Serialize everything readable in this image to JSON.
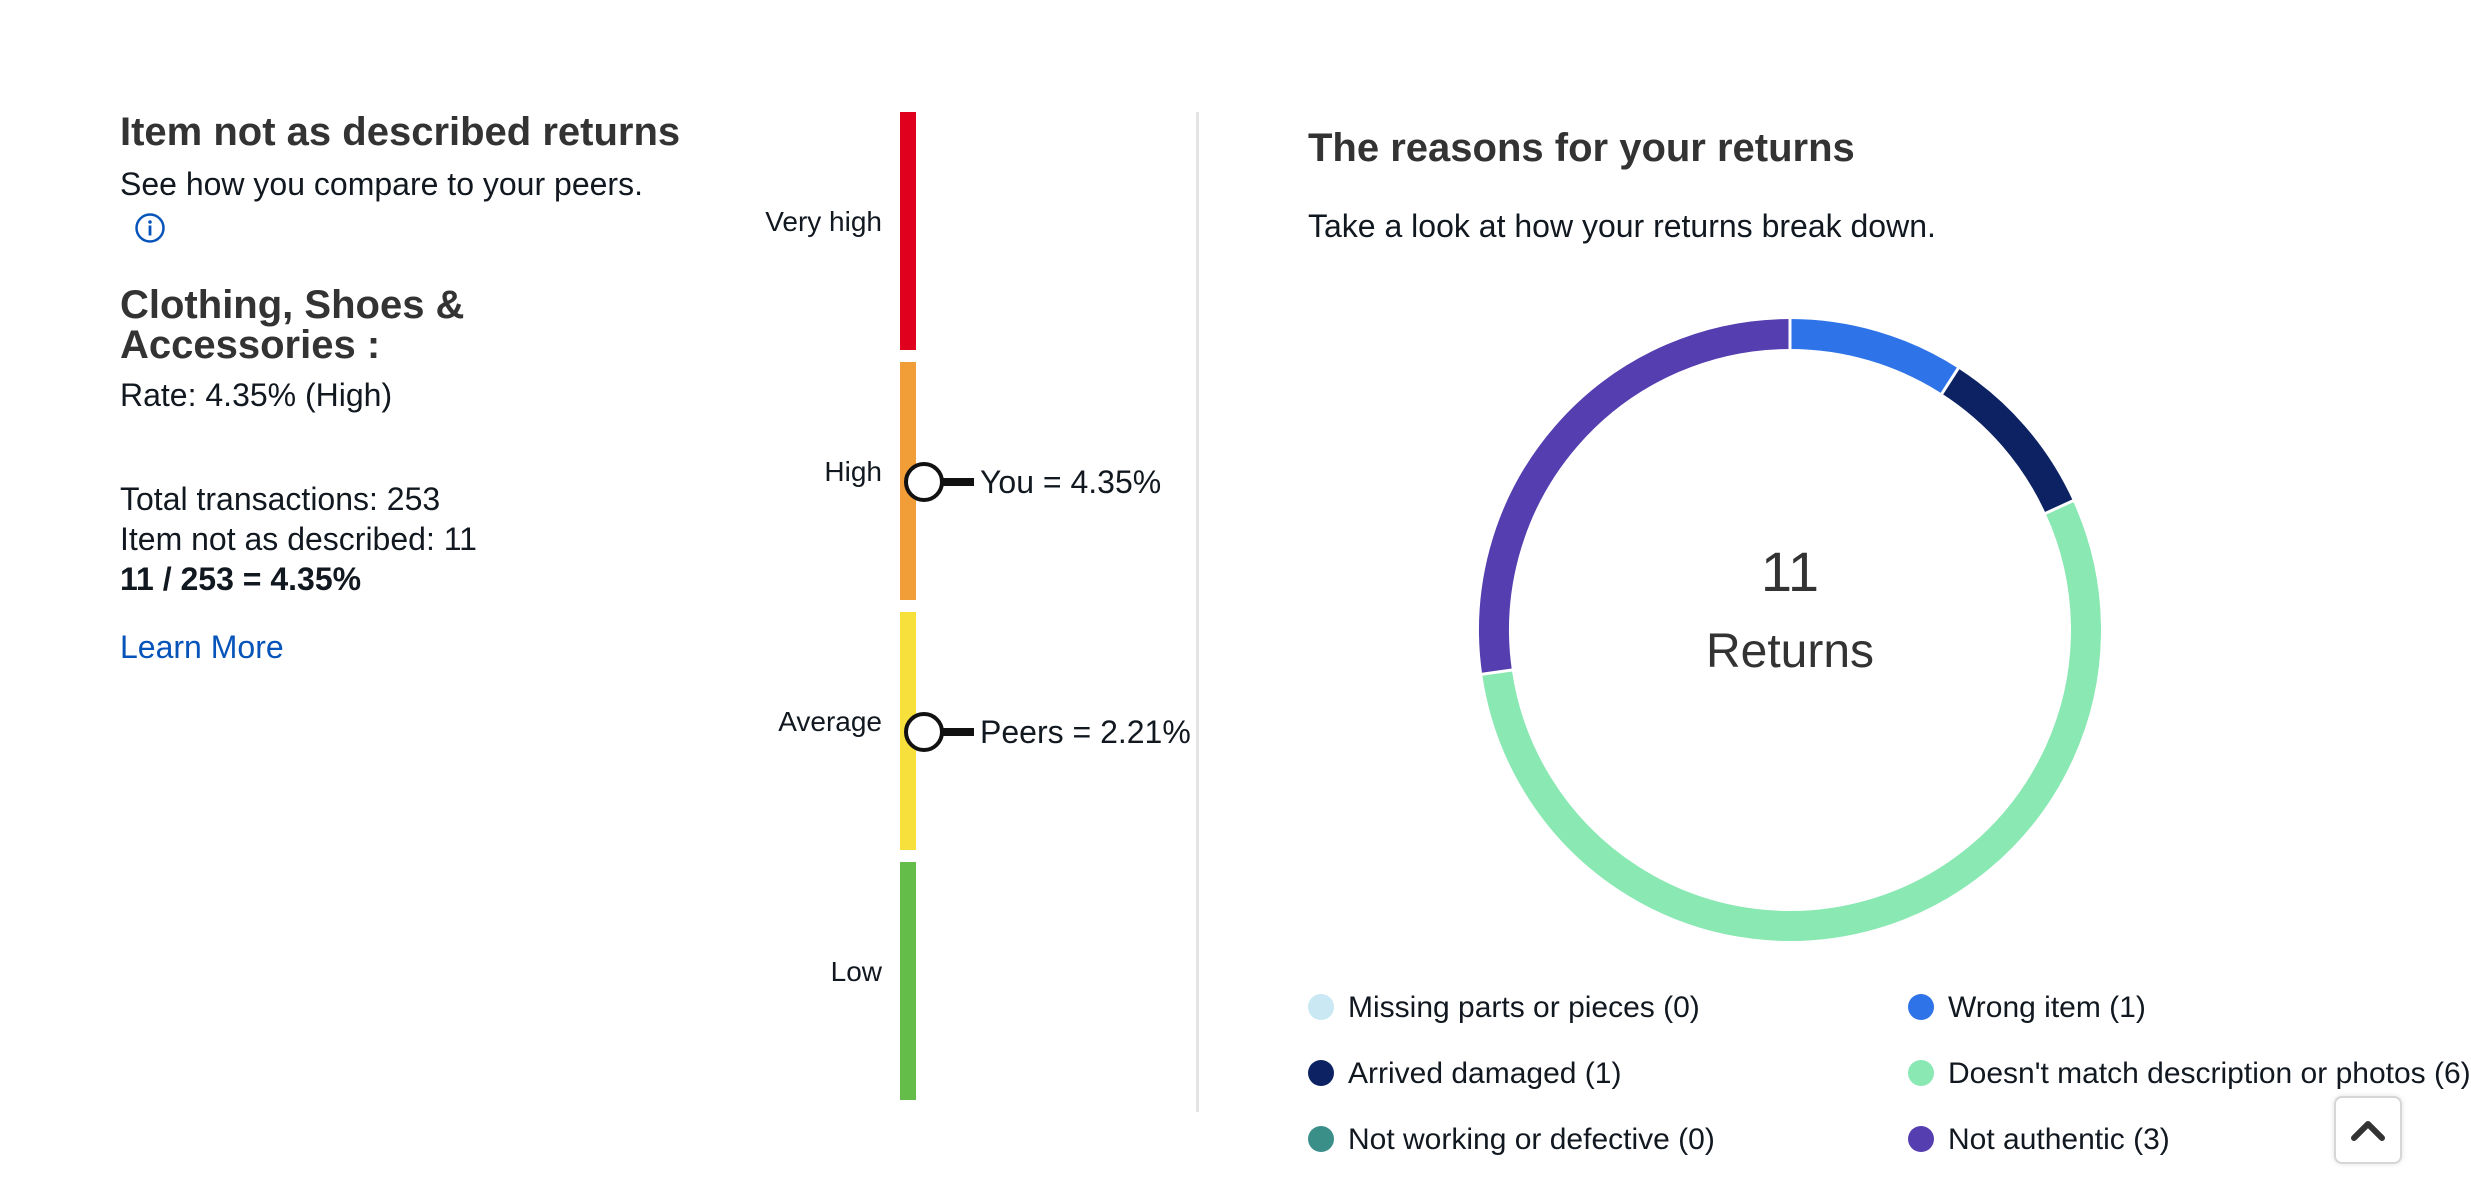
{
  "summary": {
    "title": "Item not as described returns",
    "subtitle": "See how you compare to your peers.",
    "category_title": "Clothing, Shoes & Accessories :",
    "rate_text": "Rate: 4.35% (High)",
    "total_transactions": "Total transactions: 253",
    "item_not_as_described": "Item not as described: 11",
    "formula": "11 / 253 = 4.35%",
    "learn_more": "Learn More",
    "info_icon": "info-circle-icon"
  },
  "scale": {
    "segments": [
      {
        "label": "Very high",
        "color": "#e0001e"
      },
      {
        "label": "High",
        "color": "#f19d38"
      },
      {
        "label": "Average",
        "color": "#f7e03b"
      },
      {
        "label": "Low",
        "color": "#63bd48"
      }
    ],
    "markers": [
      {
        "label": "You = 4.35%",
        "level": "High"
      },
      {
        "label": "Peers = 2.21%",
        "level": "Average"
      }
    ]
  },
  "breakdown": {
    "title": "The reasons for your returns",
    "subtitle": "Take a look at how your returns break down.",
    "total_count": "11",
    "total_label": "Returns",
    "reasons": [
      {
        "label": "Missing parts or pieces (0)",
        "count": 0,
        "color": "#c9e8f4"
      },
      {
        "label": "Wrong item (1)",
        "count": 1,
        "color": "#2e73e8"
      },
      {
        "label": "Arrived damaged (1)",
        "count": 1,
        "color": "#0c2263"
      },
      {
        "label": "Doesn't match description or photos (6)",
        "count": 6,
        "color": "#8ae8b3"
      },
      {
        "label": "Not working or defective (0)",
        "count": 0,
        "color": "#3a8f89"
      },
      {
        "label": "Not authentic (3)",
        "count": 3,
        "color": "#553eb0"
      }
    ]
  },
  "to_top_icon": "chevron-up-icon"
}
